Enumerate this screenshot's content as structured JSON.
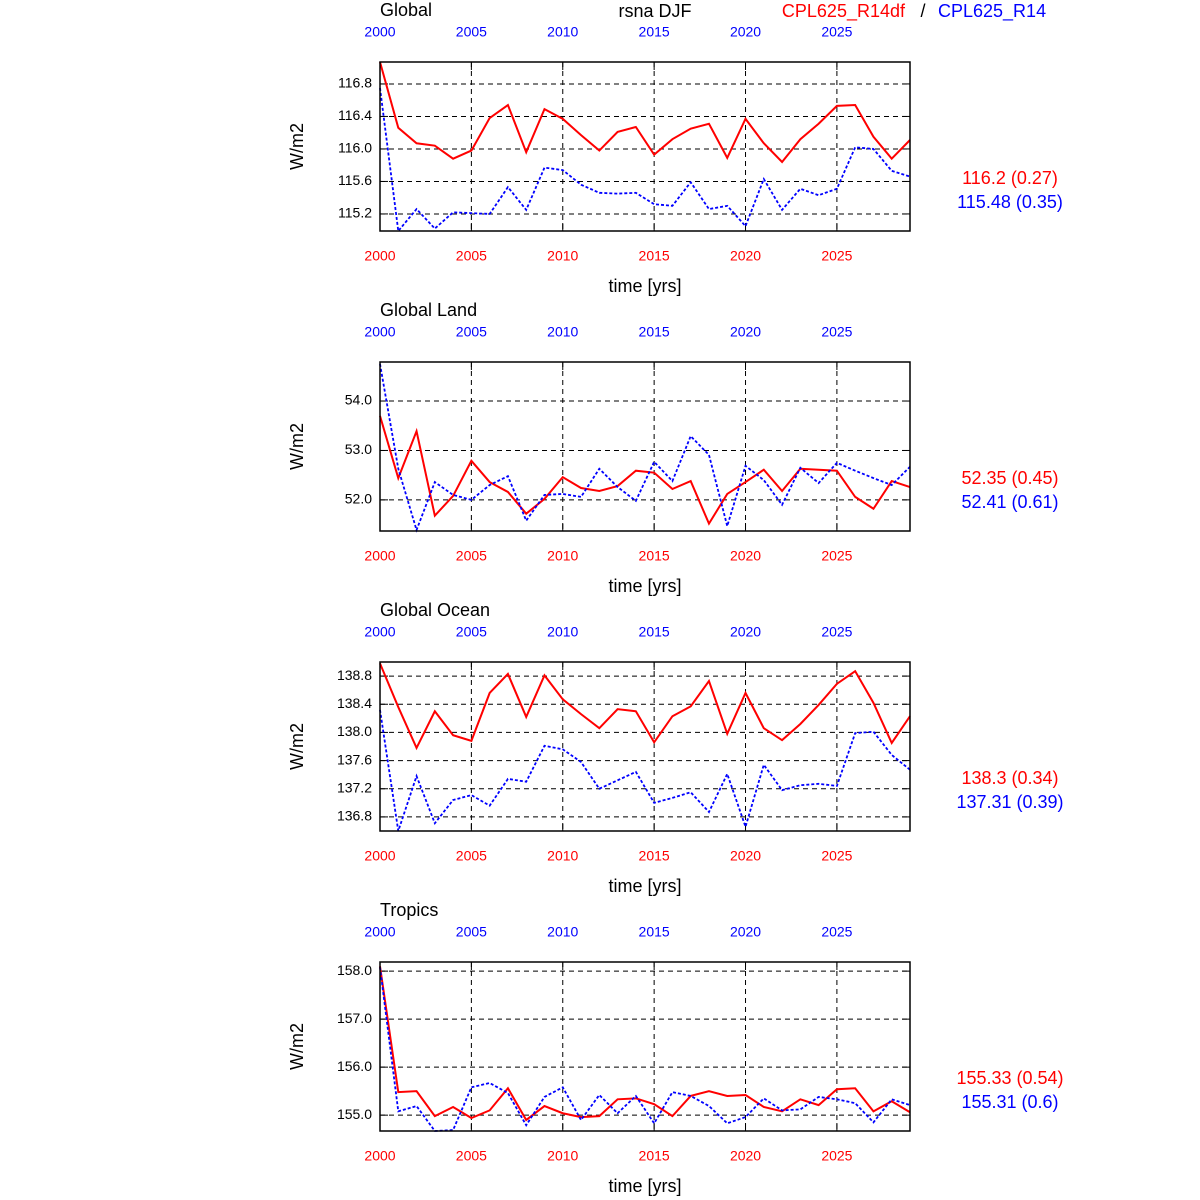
{
  "title": "rsna DJF",
  "legend_separator": "/",
  "chart_data": [
    {
      "type": "line",
      "title": "Global",
      "xlabel": "time [yrs]",
      "ylabel": "W/m2",
      "xlim": [
        2000,
        2029
      ],
      "xticks": [
        2000,
        2005,
        2010,
        2015,
        2020,
        2025
      ],
      "ylim": [
        114.99,
        117.07
      ],
      "yticks": [
        115.2,
        115.6,
        {
          "value": 116,
          "label": "116.0"
        },
        116.4,
        116.8
      ],
      "grid": true,
      "x": [
        2000,
        2001,
        2002,
        2003,
        2004,
        2005,
        2006,
        2007,
        2008,
        2009,
        2010,
        2011,
        2012,
        2013,
        2014,
        2015,
        2016,
        2017,
        2018,
        2019,
        2020,
        2021,
        2022,
        2023,
        2024,
        2025,
        2026,
        2027,
        2028,
        2029
      ],
      "series": [
        {
          "name": "CPL625_R14df",
          "color": "#ff0000",
          "line_style": "solid",
          "summary": "116.2 (0.27)",
          "values": [
            117.07,
            116.26,
            116.07,
            116.04,
            115.88,
            115.98,
            116.38,
            116.54,
            115.96,
            116.49,
            116.37,
            116.17,
            115.98,
            116.21,
            116.27,
            115.93,
            116.12,
            116.25,
            116.31,
            115.89,
            116.37,
            116.07,
            115.84,
            116.12,
            116.31,
            116.53,
            116.54,
            116.15,
            115.88,
            116.11
          ]
        },
        {
          "name": "CPL625_R14",
          "color": "#0000ff",
          "line_style": "dashed",
          "summary": "115.48 (0.35)",
          "values": [
            116.75,
            114.99,
            115.26,
            115.02,
            115.22,
            115.21,
            115.2,
            115.53,
            115.25,
            115.77,
            115.74,
            115.56,
            115.46,
            115.45,
            115.46,
            115.32,
            115.3,
            115.59,
            115.26,
            115.3,
            115.05,
            115.63,
            115.25,
            115.51,
            115.43,
            115.51,
            116.02,
            116.0,
            115.73,
            115.66
          ]
        }
      ]
    },
    {
      "type": "line",
      "title": "Global Land",
      "xlabel": "time [yrs]",
      "ylabel": "W/m2",
      "xlim": [
        2000,
        2029
      ],
      "xticks": [
        2000,
        2005,
        2010,
        2015,
        2020,
        2025
      ],
      "ylim": [
        51.37,
        54.79
      ],
      "yticks": [
        {
          "value": 52,
          "label": "52.0"
        },
        {
          "value": 53,
          "label": "53.0"
        },
        {
          "value": 54,
          "label": "54.0"
        }
      ],
      "grid": true,
      "x": [
        2000,
        2001,
        2002,
        2003,
        2004,
        2005,
        2006,
        2007,
        2008,
        2009,
        2010,
        2011,
        2012,
        2013,
        2014,
        2015,
        2016,
        2017,
        2018,
        2019,
        2020,
        2021,
        2022,
        2023,
        2024,
        2025,
        2026,
        2027,
        2028,
        2029
      ],
      "series": [
        {
          "name": "CPL625_R14df",
          "color": "#ff0000",
          "line_style": "solid",
          "summary": "52.35 (0.45)",
          "values": [
            53.7,
            52.44,
            53.39,
            51.68,
            52.08,
            52.79,
            52.36,
            52.16,
            51.72,
            52.02,
            52.46,
            52.24,
            52.18,
            52.28,
            52.59,
            52.55,
            52.22,
            52.38,
            51.52,
            52.12,
            52.36,
            52.61,
            52.18,
            52.63,
            52.61,
            52.59,
            52.06,
            51.82,
            52.38,
            52.26
          ]
        },
        {
          "name": "CPL625_R14",
          "color": "#0000ff",
          "line_style": "dashed",
          "summary": "52.41 (0.61)",
          "values": [
            54.75,
            52.63,
            51.39,
            52.36,
            52.1,
            52.0,
            52.3,
            52.48,
            51.58,
            52.1,
            52.12,
            52.06,
            52.63,
            52.26,
            51.98,
            52.77,
            52.38,
            53.29,
            52.91,
            51.47,
            52.69,
            52.4,
            51.9,
            52.65,
            52.34,
            52.75,
            52.59,
            52.44,
            52.3,
            52.67
          ]
        }
      ]
    },
    {
      "type": "line",
      "title": "Global Ocean",
      "xlabel": "time [yrs]",
      "ylabel": "W/m2",
      "xlim": [
        2000,
        2029
      ],
      "xticks": [
        2000,
        2005,
        2010,
        2015,
        2020,
        2025
      ],
      "ylim": [
        136.6,
        139.0
      ],
      "yticks": [
        136.8,
        137.2,
        137.6,
        {
          "value": 138,
          "label": "138.0"
        },
        138.4,
        138.8
      ],
      "grid": true,
      "x": [
        2000,
        2001,
        2002,
        2003,
        2004,
        2005,
        2006,
        2007,
        2008,
        2009,
        2010,
        2011,
        2012,
        2013,
        2014,
        2015,
        2016,
        2017,
        2018,
        2019,
        2020,
        2021,
        2022,
        2023,
        2024,
        2025,
        2026,
        2027,
        2028,
        2029
      ],
      "series": [
        {
          "name": "CPL625_R14df",
          "color": "#ff0000",
          "line_style": "solid",
          "summary": "138.3 (0.34)",
          "values": [
            138.98,
            138.36,
            137.78,
            138.3,
            137.96,
            137.88,
            138.56,
            138.83,
            138.22,
            138.81,
            138.47,
            138.26,
            138.06,
            138.33,
            138.3,
            137.86,
            138.23,
            138.37,
            138.73,
            137.98,
            138.56,
            138.06,
            137.89,
            138.12,
            138.39,
            138.69,
            138.87,
            138.42,
            137.85,
            138.23
          ]
        },
        {
          "name": "CPL625_R14",
          "color": "#0000ff",
          "line_style": "dashed",
          "summary": "137.31 (0.39)",
          "values": [
            138.32,
            136.6,
            137.38,
            136.71,
            137.04,
            137.11,
            136.96,
            137.34,
            137.3,
            137.81,
            137.76,
            137.58,
            137.2,
            137.32,
            137.44,
            137.0,
            137.07,
            137.15,
            136.87,
            137.41,
            136.66,
            137.54,
            137.18,
            137.25,
            137.27,
            137.24,
            137.99,
            138.01,
            137.68,
            137.47
          ]
        }
      ]
    },
    {
      "type": "line",
      "title": "Tropics",
      "xlabel": "time [yrs]",
      "ylabel": "W/m2",
      "xlim": [
        2000,
        2029
      ],
      "xticks": [
        2000,
        2005,
        2010,
        2015,
        2020,
        2025
      ],
      "ylim": [
        154.67,
        158.19
      ],
      "yticks": [
        {
          "value": 155,
          "label": "155.0"
        },
        {
          "value": 156,
          "label": "156.0"
        },
        {
          "value": 157,
          "label": "157.0"
        },
        {
          "value": 158,
          "label": "158.0"
        }
      ],
      "grid": true,
      "x": [
        2000,
        2001,
        2002,
        2003,
        2004,
        2005,
        2006,
        2007,
        2008,
        2009,
        2010,
        2011,
        2012,
        2013,
        2014,
        2015,
        2016,
        2017,
        2018,
        2019,
        2020,
        2021,
        2022,
        2023,
        2024,
        2025,
        2026,
        2027,
        2028,
        2029
      ],
      "series": [
        {
          "name": "CPL625_R14df",
          "color": "#ff0000",
          "line_style": "solid",
          "summary": "155.33 (0.54)",
          "values": [
            158.1,
            155.48,
            155.5,
            154.98,
            155.17,
            154.94,
            155.1,
            155.56,
            154.9,
            155.19,
            155.04,
            154.96,
            154.98,
            155.33,
            155.35,
            155.23,
            154.98,
            155.4,
            155.5,
            155.4,
            155.42,
            155.17,
            155.08,
            155.33,
            155.21,
            155.54,
            155.56,
            155.08,
            155.29,
            155.06
          ]
        },
        {
          "name": "CPL625_R14",
          "color": "#0000ff",
          "line_style": "dashed",
          "summary": "155.31 (0.6)",
          "values": [
            158.08,
            155.08,
            155.19,
            154.67,
            154.69,
            155.58,
            155.67,
            155.46,
            154.79,
            155.38,
            155.58,
            154.9,
            155.42,
            155.04,
            155.4,
            154.83,
            155.48,
            155.4,
            155.19,
            154.83,
            154.96,
            155.35,
            155.1,
            155.12,
            155.38,
            155.33,
            155.25,
            154.85,
            155.33,
            155.21
          ]
        }
      ]
    }
  ]
}
